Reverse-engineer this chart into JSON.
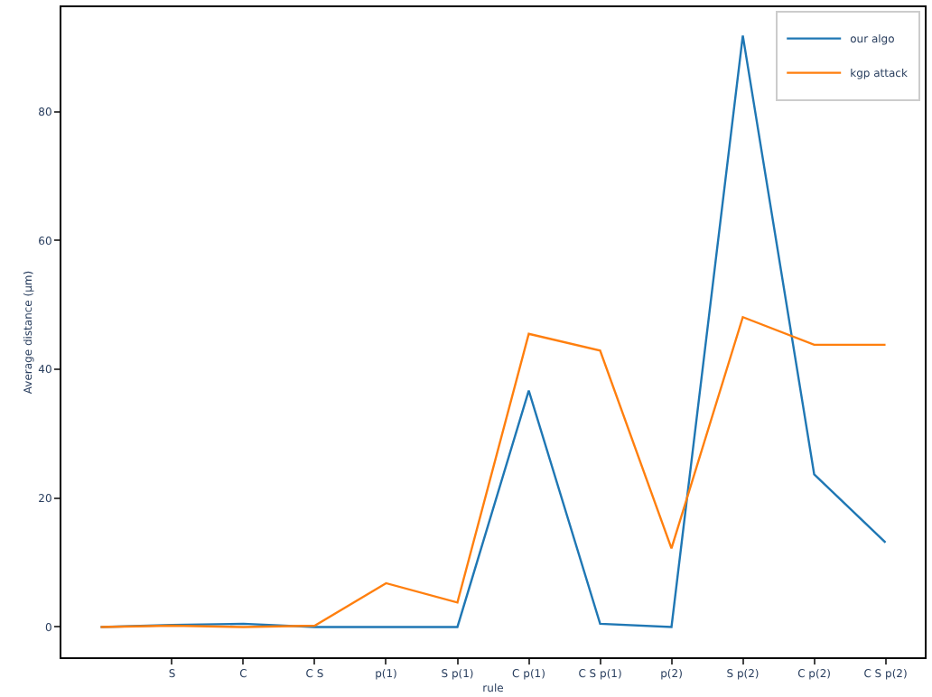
{
  "chart_data": {
    "type": "line",
    "xlabel": "rule",
    "ylabel": "Average distance (μm)",
    "categories": [
      null,
      "S",
      "C",
      "C S",
      "p(1)",
      "S p(1)",
      "C p(1)",
      "C S p(1)",
      "p(2)",
      "S p(2)",
      "C p(2)",
      "C S p(2)"
    ],
    "series": [
      {
        "name": "our algo",
        "color": "#1f77b4",
        "values": [
          0,
          0.3,
          0.5,
          0,
          0,
          0,
          36.7,
          0.5,
          0,
          91.8,
          23.7,
          13.1
        ]
      },
      {
        "name": "kgp attack",
        "color": "#ff7f0e",
        "values": [
          0,
          0.2,
          0,
          0.2,
          6.8,
          3.8,
          45.5,
          42.9,
          12.2,
          48.1,
          43.8,
          43.8
        ]
      }
    ],
    "ylim": [
      -4.7,
      96.2
    ],
    "yticks": [
      0,
      20,
      40,
      60,
      80
    ],
    "legend": "top right"
  }
}
